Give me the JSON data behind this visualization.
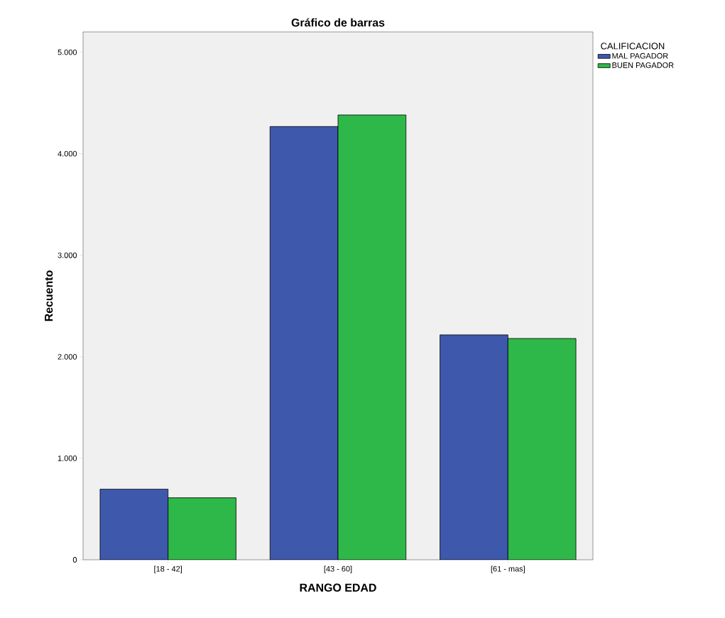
{
  "chart_data": {
    "type": "bar",
    "title": "Gráfico de barras",
    "xlabel": "RANGO EDAD",
    "ylabel": "Recuento",
    "legend_title": "CALIFICACION",
    "categories": [
      "[18 - 42]",
      "[43 - 60]",
      "[61 - mas]"
    ],
    "series": [
      {
        "name": "MAL PAGADOR",
        "color": "#3e58ac",
        "values": [
          696,
          4268,
          2216
        ]
      },
      {
        "name": "BUEN PAGADOR",
        "color": "#2fb84a",
        "values": [
          611,
          4382,
          2180
        ]
      }
    ],
    "ylim": [
      0,
      5200
    ],
    "yticks": [
      0,
      {
        "value": 1000,
        "label": "1.000"
      },
      {
        "value": 2000,
        "label": "2.000"
      },
      {
        "value": 3000,
        "label": "3.000"
      },
      {
        "value": 4000,
        "label": "4.000"
      },
      {
        "value": 5000,
        "label": "5.000"
      }
    ],
    "grid": false,
    "legend": "top right"
  }
}
